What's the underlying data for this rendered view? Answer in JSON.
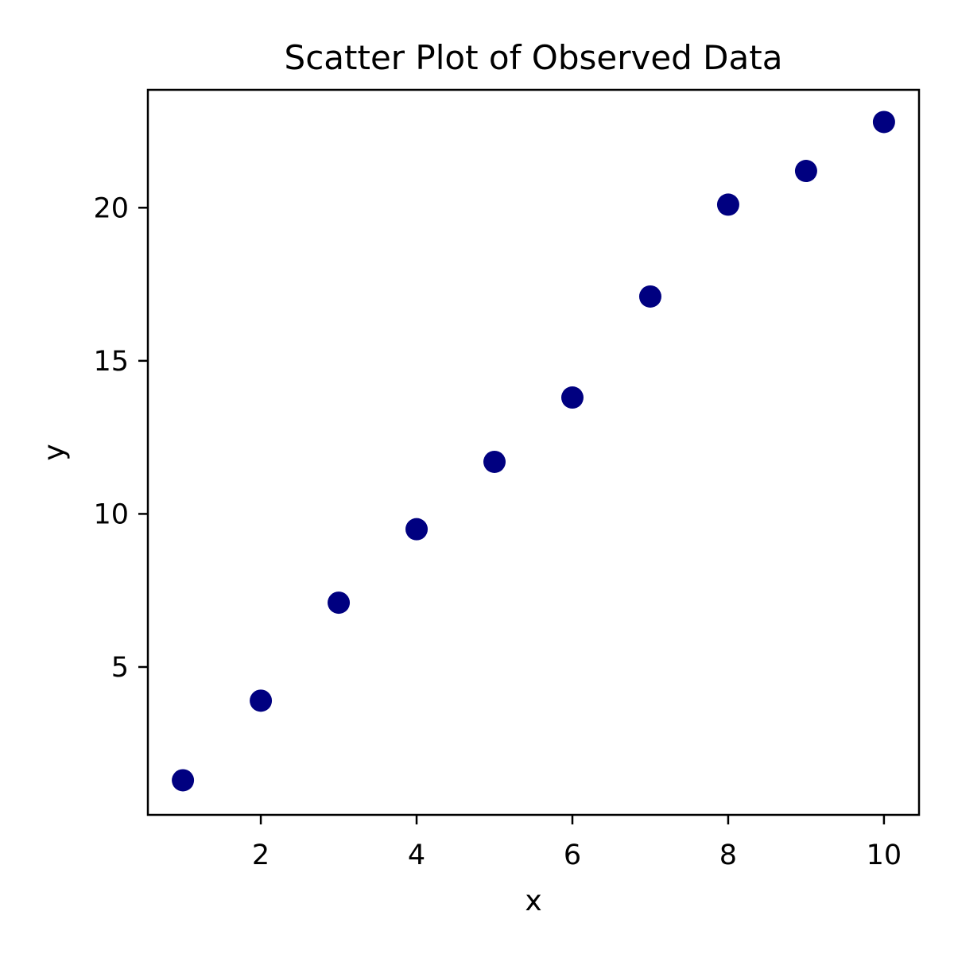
{
  "chart_data": {
    "type": "scatter",
    "title": "Scatter Plot of Observed Data",
    "xlabel": "x",
    "ylabel": "y",
    "xlim": [
      0.55,
      10.45
    ],
    "ylim": [
      0.17,
      23.85
    ],
    "x_ticks": [
      2,
      4,
      6,
      8,
      10
    ],
    "x_tick_labels": [
      "2",
      "4",
      "6",
      "8",
      "10"
    ],
    "y_ticks": [
      5,
      10,
      15,
      20
    ],
    "y_tick_labels": [
      "5",
      "10",
      "15",
      "20"
    ],
    "grid": false,
    "legend": false,
    "series": [
      {
        "color": "#000080",
        "x": [
          1,
          2,
          3,
          4,
          5,
          6,
          7,
          8,
          9,
          10
        ],
        "y": [
          1.3,
          3.9,
          7.1,
          9.5,
          11.7,
          13.8,
          17.1,
          20.1,
          21.2,
          22.8
        ]
      }
    ]
  }
}
